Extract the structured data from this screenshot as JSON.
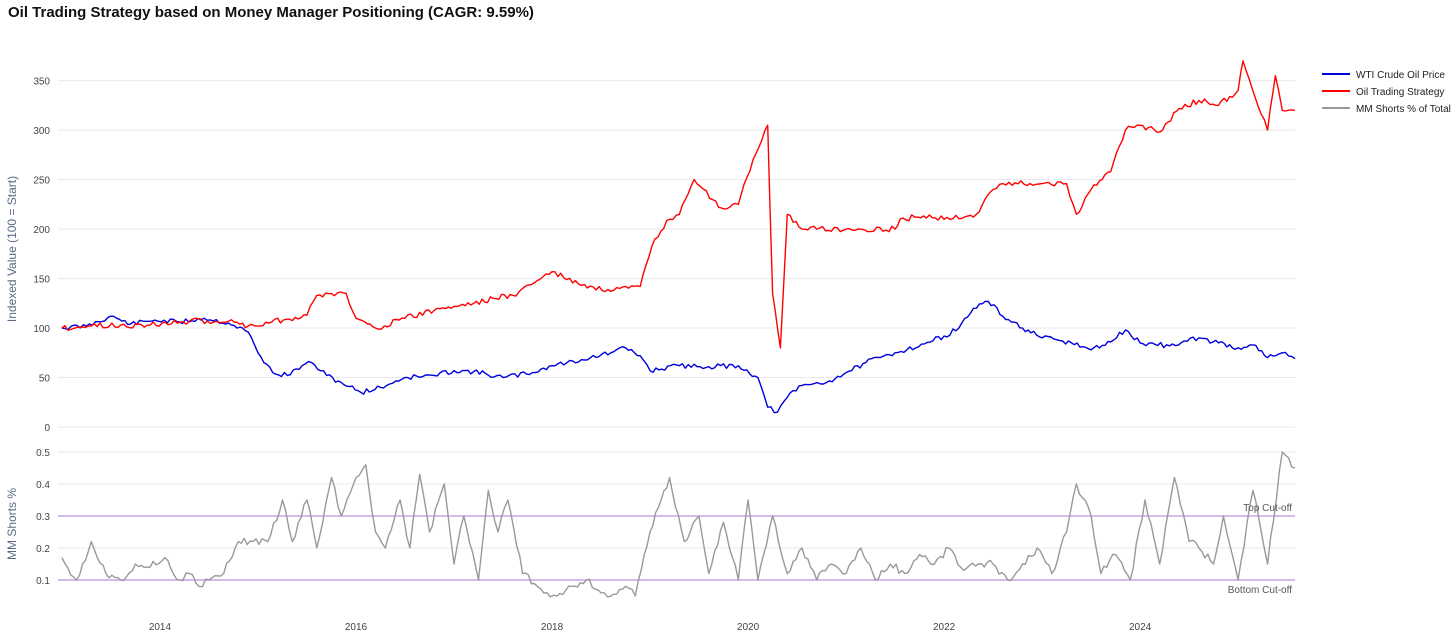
{
  "chart_data": {
    "type": "line",
    "title": "Oil Trading Strategy based on Money Manager Positioning (CAGR: 9.59%)",
    "x_ticks": [
      "2014",
      "2016",
      "2018",
      "2020",
      "2022",
      "2024"
    ],
    "x_range": [
      2012.96,
      2025.58
    ],
    "colors": {
      "wti": "#0000dd",
      "strategy": "#ff0000",
      "shorts": "#999999",
      "cutoff": "#c8a2e8",
      "grid": "#e8e8ee",
      "tick_text": "#444444",
      "axis_label": "#5a6a85"
    },
    "legend": {
      "placement": "top-right",
      "items": [
        {
          "label": "WTI Crude Oil Price",
          "color": "#0000dd"
        },
        {
          "label": "Oil Trading Strategy",
          "color": "#ff0000"
        },
        {
          "label": "MM Shorts % of Total",
          "color": "#999999"
        }
      ]
    },
    "top_panel": {
      "ylabel": "Indexed Value (100 = Start)",
      "ylim": [
        0,
        380
      ],
      "y_ticks": [
        "0",
        "50",
        "100",
        "150",
        "200",
        "250",
        "300",
        "350"
      ],
      "series": [
        {
          "name": "WTI Crude Oil Price",
          "x": [
            2013.0,
            2013.25,
            2013.5,
            2013.7,
            2013.95,
            2014.2,
            2014.45,
            2014.7,
            2014.9,
            2015.0,
            2015.15,
            2015.3,
            2015.45,
            2015.55,
            2015.7,
            2015.85,
            2016.05,
            2016.25,
            2016.5,
            2016.8,
            2017.0,
            2017.2,
            2017.5,
            2017.8,
            2018.0,
            2018.3,
            2018.6,
            2018.75,
            2018.9,
            2019.0,
            2019.3,
            2019.6,
            2019.9,
            2020.1,
            2020.2,
            2020.3,
            2020.4,
            2020.55,
            2020.8,
            2021.0,
            2021.2,
            2021.5,
            2021.8,
            2022.0,
            2022.15,
            2022.3,
            2022.45,
            2022.6,
            2022.8,
            2023.0,
            2023.3,
            2023.5,
            2023.7,
            2023.85,
            2024.0,
            2024.3,
            2024.6,
            2024.8,
            2025.0,
            2025.15,
            2025.3,
            2025.45,
            2025.58
          ],
          "values": [
            100,
            102,
            112,
            104,
            108,
            106,
            110,
            105,
            96,
            75,
            55,
            52,
            62,
            65,
            52,
            45,
            35,
            40,
            50,
            52,
            57,
            56,
            50,
            55,
            62,
            68,
            75,
            80,
            72,
            57,
            62,
            61,
            62,
            50,
            20,
            15,
            30,
            42,
            45,
            55,
            65,
            75,
            84,
            92,
            100,
            120,
            127,
            112,
            100,
            90,
            85,
            78,
            86,
            98,
            85,
            82,
            90,
            85,
            80,
            83,
            70,
            75,
            69
          ]
        },
        {
          "name": "Oil Trading Strategy",
          "x": [
            2013.0,
            2013.3,
            2013.6,
            2013.9,
            2014.3,
            2014.7,
            2014.9,
            2015.5,
            2015.6,
            2015.9,
            2016.0,
            2016.2,
            2016.5,
            2016.8,
            2017.0,
            2017.2,
            2017.4,
            2017.6,
            2017.85,
            2018.0,
            2018.3,
            2018.6,
            2018.9,
            2019.05,
            2019.2,
            2019.3,
            2019.45,
            2019.7,
            2019.9,
            2020.05,
            2020.2,
            2020.25,
            2020.33,
            2020.4,
            2020.55,
            2020.7,
            2021.0,
            2021.5,
            2021.55,
            2021.7,
            2022.3,
            2022.5,
            2022.6,
            2023.0,
            2023.25,
            2023.35,
            2023.5,
            2023.7,
            2023.85,
            2024.0,
            2024.2,
            2024.4,
            2024.6,
            2024.8,
            2025.0,
            2025.05,
            2025.2,
            2025.3,
            2025.38,
            2025.45,
            2025.58
          ],
          "values": [
            100,
            102,
            103,
            103,
            107,
            107,
            102,
            113,
            133,
            135,
            110,
            100,
            110,
            118,
            122,
            125,
            130,
            133,
            148,
            157,
            143,
            137,
            142,
            190,
            210,
            215,
            250,
            222,
            225,
            270,
            305,
            135,
            80,
            215,
            200,
            200,
            200,
            200,
            210,
            212,
            212,
            240,
            246,
            246,
            246,
            215,
            240,
            258,
            300,
            305,
            298,
            322,
            330,
            325,
            340,
            370,
            325,
            300,
            355,
            320,
            320
          ]
        }
      ]
    },
    "bottom_panel": {
      "ylabel": "MM Shorts %",
      "ylim": [
        0.0,
        0.55
      ],
      "y_ticks": [
        "0.1",
        "0.2",
        "0.3",
        "0.4",
        "0.5"
      ],
      "top_cutoff": {
        "value": 0.3,
        "label": "Top Cut-off"
      },
      "bottom_cutoff": {
        "value": 0.1,
        "label": "Bottom Cut-off"
      },
      "series": [
        {
          "name": "MM Shorts % of Total",
          "x": [
            2013.0,
            2013.15,
            2013.3,
            2013.45,
            2013.6,
            2013.75,
            2013.9,
            2014.05,
            2014.2,
            2014.3,
            2014.4,
            2014.5,
            2014.65,
            2014.8,
            2014.95,
            2015.1,
            2015.25,
            2015.35,
            2015.5,
            2015.6,
            2015.75,
            2015.85,
            2016.0,
            2016.1,
            2016.2,
            2016.3,
            2016.45,
            2016.55,
            2016.65,
            2016.75,
            2016.9,
            2017.0,
            2017.1,
            2017.25,
            2017.35,
            2017.45,
            2017.55,
            2017.7,
            2017.85,
            2017.95,
            2018.05,
            2018.2,
            2018.35,
            2018.5,
            2018.6,
            2018.75,
            2018.85,
            2019.0,
            2019.2,
            2019.35,
            2019.5,
            2019.6,
            2019.75,
            2019.9,
            2020.0,
            2020.1,
            2020.25,
            2020.4,
            2020.55,
            2020.7,
            2020.85,
            2021.0,
            2021.15,
            2021.3,
            2021.45,
            2021.6,
            2021.75,
            2021.9,
            2022.05,
            2022.2,
            2022.35,
            2022.5,
            2022.65,
            2022.8,
            2022.95,
            2023.1,
            2023.25,
            2023.35,
            2023.5,
            2023.6,
            2023.75,
            2023.9,
            2024.05,
            2024.2,
            2024.35,
            2024.5,
            2024.6,
            2024.75,
            2024.85,
            2025.0,
            2025.15,
            2025.3,
            2025.45,
            2025.58
          ],
          "values": [
            0.17,
            0.1,
            0.22,
            0.12,
            0.1,
            0.15,
            0.14,
            0.17,
            0.1,
            0.12,
            0.08,
            0.1,
            0.12,
            0.22,
            0.22,
            0.22,
            0.35,
            0.22,
            0.35,
            0.2,
            0.42,
            0.3,
            0.42,
            0.46,
            0.25,
            0.2,
            0.35,
            0.2,
            0.43,
            0.25,
            0.4,
            0.15,
            0.3,
            0.1,
            0.38,
            0.25,
            0.35,
            0.12,
            0.08,
            0.06,
            0.05,
            0.08,
            0.1,
            0.06,
            0.05,
            0.08,
            0.05,
            0.25,
            0.42,
            0.22,
            0.3,
            0.12,
            0.28,
            0.1,
            0.35,
            0.1,
            0.3,
            0.12,
            0.2,
            0.1,
            0.15,
            0.12,
            0.2,
            0.1,
            0.15,
            0.12,
            0.18,
            0.15,
            0.2,
            0.13,
            0.15,
            0.15,
            0.1,
            0.15,
            0.2,
            0.12,
            0.25,
            0.4,
            0.3,
            0.12,
            0.18,
            0.1,
            0.35,
            0.15,
            0.42,
            0.22,
            0.2,
            0.15,
            0.3,
            0.1,
            0.38,
            0.15,
            0.5,
            0.45
          ]
        }
      ]
    }
  }
}
